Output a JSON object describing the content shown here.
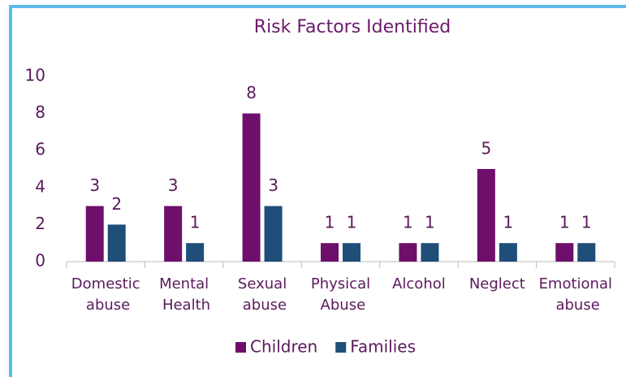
{
  "chart_data": {
    "type": "bar",
    "title": "Risk Factors Identified",
    "categories": [
      "Domestic abuse",
      "Mental Health",
      "Sexual abuse",
      "Physical Abuse",
      "Alcohol",
      "Neglect",
      "Emotional abuse"
    ],
    "series": [
      {
        "name": "Children",
        "color": "#6e0f6b",
        "values": [
          3,
          3,
          8,
          1,
          1,
          5,
          1
        ]
      },
      {
        "name": "Families",
        "color": "#1f4e79",
        "values": [
          2,
          1,
          3,
          1,
          1,
          1,
          1
        ]
      }
    ],
    "ylim": [
      0,
      10
    ],
    "yticks": [
      0,
      2,
      4,
      6,
      8,
      10
    ],
    "grid": false,
    "legend": "bottom"
  }
}
